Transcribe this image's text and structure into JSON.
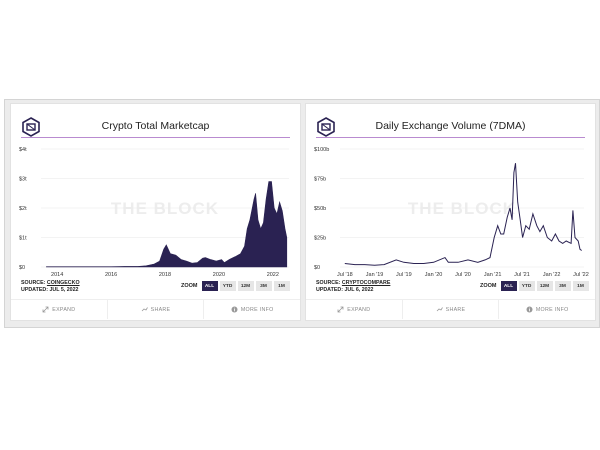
{
  "chart_data": [
    {
      "type": "area",
      "title": "Crypto Total Marketcap",
      "x": [
        2013.6,
        2014.0,
        2014.5,
        2015.0,
        2015.5,
        2016.0,
        2016.5,
        2017.0,
        2017.3,
        2017.6,
        2017.8,
        2017.95,
        2018.05,
        2018.2,
        2018.4,
        2018.6,
        2018.8,
        2019.0,
        2019.2,
        2019.4,
        2019.5,
        2019.7,
        2019.9,
        2020.1,
        2020.2,
        2020.4,
        2020.6,
        2020.8,
        2020.95,
        2021.05,
        2021.15,
        2021.3,
        2021.36,
        2021.45,
        2021.55,
        2021.65,
        2021.75,
        2021.85,
        2021.95,
        2022.05,
        2022.15,
        2022.25,
        2022.35,
        2022.45,
        2022.52
      ],
      "values": [
        0.01,
        0.01,
        0.01,
        0.01,
        0.01,
        0.01,
        0.02,
        0.02,
        0.04,
        0.1,
        0.2,
        0.6,
        0.75,
        0.45,
        0.4,
        0.25,
        0.2,
        0.13,
        0.15,
        0.3,
        0.32,
        0.25,
        0.2,
        0.25,
        0.15,
        0.26,
        0.35,
        0.45,
        0.7,
        1.3,
        1.6,
        2.3,
        2.5,
        1.6,
        1.3,
        1.5,
        2.3,
        2.9,
        2.9,
        2.0,
        1.8,
        2.2,
        1.9,
        1.3,
        1.0
      ],
      "xticks": [
        "2014",
        "2016",
        "2018",
        "2020",
        "2022"
      ],
      "xtick_values": [
        2014,
        2016,
        2018,
        2020,
        2022
      ],
      "yticks": [
        "$0",
        "$1t",
        "$2t",
        "$3t",
        "$4t"
      ],
      "ytick_values": [
        0,
        1,
        2,
        3,
        4
      ],
      "xlim": [
        2013.4,
        2022.6
      ],
      "ylim": [
        0,
        4
      ],
      "grid": true,
      "color": "#2a2252"
    },
    {
      "type": "line",
      "title": "Daily Exchange Volume (7DMA)",
      "x": [
        "2018-07-01",
        "2018-09-01",
        "2018-11-01",
        "2019-01-01",
        "2019-03-01",
        "2019-05-15",
        "2019-07-01",
        "2019-09-01",
        "2019-11-01",
        "2020-01-01",
        "2020-03-12",
        "2020-04-01",
        "2020-06-01",
        "2020-08-01",
        "2020-10-01",
        "2020-11-15",
        "2020-12-15",
        "2021-01-10",
        "2021-02-01",
        "2021-02-20",
        "2021-03-10",
        "2021-04-01",
        "2021-04-18",
        "2021-05-01",
        "2021-05-12",
        "2021-05-22",
        "2021-06-05",
        "2021-06-20",
        "2021-07-05",
        "2021-07-25",
        "2021-08-15",
        "2021-09-07",
        "2021-10-01",
        "2021-10-20",
        "2021-11-10",
        "2021-12-05",
        "2022-01-01",
        "2022-01-24",
        "2022-02-15",
        "2022-03-10",
        "2022-04-01",
        "2022-05-01",
        "2022-05-12",
        "2022-05-25",
        "2022-06-14",
        "2022-06-25",
        "2022-07-06"
      ],
      "values": [
        3,
        2,
        2,
        1.5,
        2,
        6,
        4,
        3,
        3,
        4,
        8,
        4,
        4,
        6,
        4,
        6,
        8,
        25,
        35,
        28,
        28,
        42,
        50,
        40,
        80,
        88,
        55,
        40,
        25,
        35,
        32,
        45,
        35,
        30,
        35,
        25,
        22,
        28,
        22,
        20,
        22,
        20,
        48,
        25,
        22,
        15,
        14
      ],
      "xticks": [
        "Jul '18",
        "Jan '19",
        "Jul '19",
        "Jan '20",
        "Jul '20",
        "Jan '21",
        "Jul '21",
        "Jan '22",
        "Jul '22"
      ],
      "xtick_values": [
        "2018-07-01",
        "2019-01-01",
        "2019-07-01",
        "2020-01-01",
        "2020-07-01",
        "2021-01-01",
        "2021-07-01",
        "2022-01-01",
        "2022-07-01"
      ],
      "yticks": [
        "$0",
        "$25b",
        "$50b",
        "$75b",
        "$100b"
      ],
      "ytick_values": [
        0,
        25,
        50,
        75,
        100
      ],
      "xlim": [
        "2018-06-01",
        "2022-07-20"
      ],
      "ylim": [
        0,
        100
      ],
      "grid": true,
      "color": "#2a2252"
    }
  ],
  "cards": [
    {
      "source_prefix": "SOURCE: ",
      "source_link": "COINGECKO",
      "updated": "UPDATED: JUL 5, 2022"
    },
    {
      "source_prefix": "SOURCE: ",
      "source_link": "CRYPTOCOMPARE",
      "updated": "UPDATED: JUL 6, 2022"
    }
  ],
  "zoom": {
    "label": "ZOOM",
    "options": [
      "ALL",
      "YTD",
      "12M",
      "3M",
      "1M"
    ],
    "selected": "ALL"
  },
  "footer": {
    "expand": "EXPAND",
    "share": "SHARE",
    "more_info": "MORE INFO"
  },
  "watermark": "THE BLOCK",
  "colors": {
    "accent": "#2a2252",
    "title_rule": "#b98bd0",
    "grid": "#e8e8e8",
    "watermark": "#ededed"
  }
}
